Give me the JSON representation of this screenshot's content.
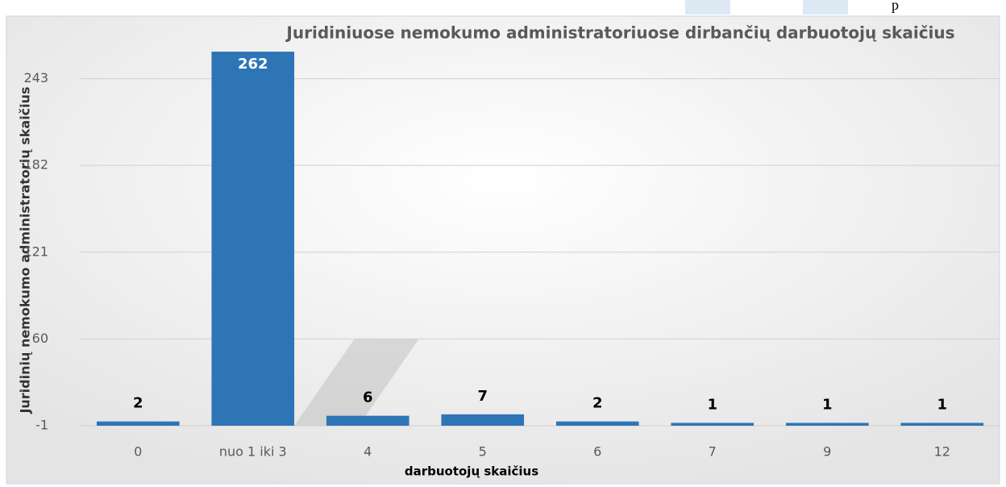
{
  "page_fragment": "p",
  "chart_data": {
    "type": "bar",
    "title": "Juridiniuose nemokumo administratoriuose dirbančių darbuotojų skaičius",
    "x_label": "darbuotojų skaičius",
    "y_label": "Juridinių nemokumo administratorių skaičius",
    "categories": [
      "0",
      "nuo 1 iki 3",
      "4",
      "5",
      "6",
      "7",
      "9",
      "12"
    ],
    "values": [
      2,
      262,
      6,
      7,
      2,
      1,
      1,
      1
    ],
    "color": "#2e75b6",
    "ylim": [
      -1,
      266
    ],
    "yticks": [
      -1,
      60,
      121,
      182,
      243
    ],
    "grid": true
  }
}
